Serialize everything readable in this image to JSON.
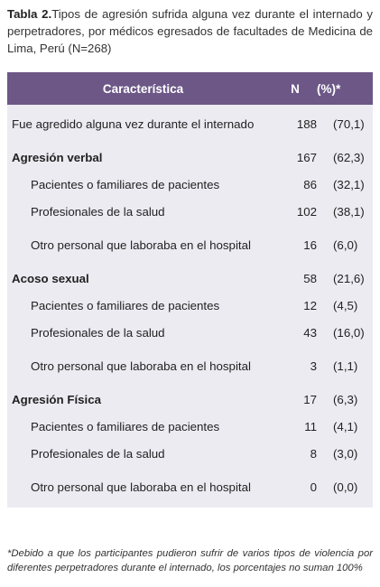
{
  "caption": {
    "label": "Tabla 2.",
    "text": "Tipos de agresión sufrida alguna vez durante el internado y perpetradores, por médicos egresados de facultades de Medicina de Lima, Perú (N=268)"
  },
  "table": {
    "headers": [
      "Característica",
      "N",
      "(%)*"
    ],
    "rows": [
      {
        "label": "Fue agredido alguna vez durante el internado",
        "n": "188",
        "pct": "(70,1)",
        "kind": "top"
      },
      {
        "label": "Agresión verbal",
        "n": "167",
        "pct": "(62,3)",
        "kind": "group"
      },
      {
        "label": "Pacientes o familiares de pacientes",
        "n": "86",
        "pct": "(32,1)",
        "kind": "sub"
      },
      {
        "label": "Profesionales de la salud",
        "n": "102",
        "pct": "(38,1)",
        "kind": "sub"
      },
      {
        "label": "Otro personal que laboraba en el hospital",
        "n": "16",
        "pct": "(6,0)",
        "kind": "sub"
      },
      {
        "label": "Acoso sexual",
        "n": "58",
        "pct": "(21,6)",
        "kind": "group"
      },
      {
        "label": "Pacientes o familiares de pacientes",
        "n": "12",
        "pct": "(4,5)",
        "kind": "sub"
      },
      {
        "label": "Profesionales de la salud",
        "n": "43",
        "pct": "(16,0)",
        "kind": "sub"
      },
      {
        "label": "Otro personal que laboraba en el hospital",
        "n": "3",
        "pct": "(1,1)",
        "kind": "sub"
      },
      {
        "label": "Agresión Física",
        "n": "17",
        "pct": "(6,3)",
        "kind": "group"
      },
      {
        "label": "Pacientes o familiares de pacientes",
        "n": "11",
        "pct": "(4,1)",
        "kind": "sub"
      },
      {
        "label": "Profesionales de la salud",
        "n": "8",
        "pct": "(3,0)",
        "kind": "sub"
      },
      {
        "label": "Otro personal que laboraba en el hospital",
        "n": "0",
        "pct": "(0,0)",
        "kind": "sub"
      }
    ]
  },
  "footnote": "*Debido a que los participantes pudieron sufrir de varios tipos de violencia por diferentes perpetradores durante el internado, los porcentajes no suman 100%",
  "colors": {
    "header_bg": "#6c5787",
    "body_bg": "#ecebf2"
  }
}
